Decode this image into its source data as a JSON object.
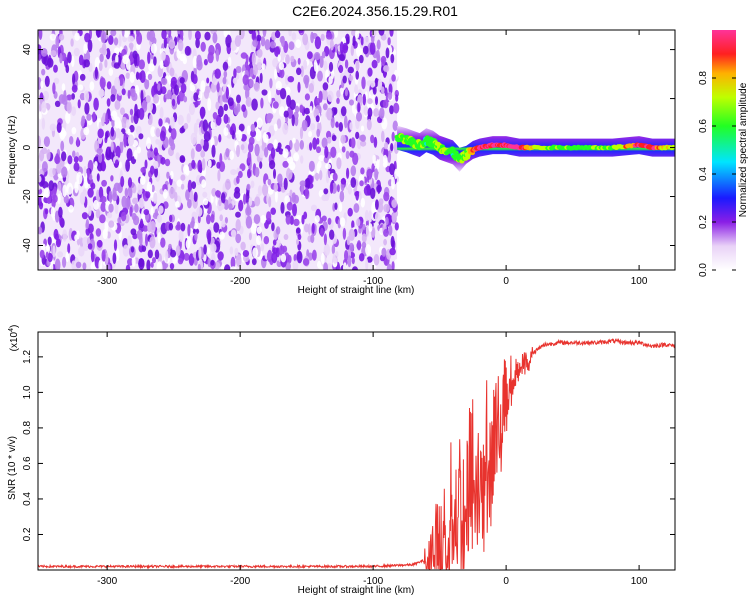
{
  "title": "C2E6.2024.356.15.29.R01",
  "chart_data": [
    {
      "type": "heatmap",
      "title": "",
      "xlabel": "Height of straight line (km)",
      "ylabel": "Frequency (Hz)",
      "xlim": [
        -352,
        127
      ],
      "ylim": [
        -50,
        48
      ],
      "xticks": [
        -300,
        -200,
        -100,
        0,
        100
      ],
      "xtick_labels": [
        "-300",
        "-200",
        "-100",
        "0",
        "100"
      ],
      "yticks": [
        -40,
        -20,
        0,
        20,
        40
      ],
      "ytick_labels": [
        "-40",
        "-20",
        "0",
        "20",
        "40"
      ],
      "noise_region_x": [
        -352,
        -82
      ],
      "signal_track": {
        "x": [
          -82,
          -75,
          -70,
          -65,
          -60,
          -55,
          -50,
          -45,
          -40,
          -35,
          -30,
          -25,
          -20,
          -10,
          0,
          10,
          20,
          40,
          60,
          80,
          100,
          110,
          127
        ],
        "freq": [
          4,
          3,
          2,
          1,
          3,
          2,
          0,
          -1,
          -2,
          -5,
          -3,
          -1,
          0,
          1,
          1,
          0,
          0,
          0,
          0,
          0,
          1,
          0,
          0
        ],
        "amplitude": [
          0.5,
          0.6,
          0.55,
          0.6,
          0.5,
          0.55,
          0.6,
          0.6,
          0.5,
          0.55,
          0.6,
          0.8,
          0.9,
          0.9,
          0.9,
          0.95,
          0.7,
          0.55,
          0.55,
          0.6,
          0.95,
          0.9,
          0.6
        ]
      },
      "colorbar": {
        "label": "Normalized spectral amplitude",
        "range": [
          0.0,
          1.0
        ],
        "ticks": [
          0.0,
          0.2,
          0.4,
          0.6,
          0.8
        ],
        "tick_labels": [
          "0.0",
          "0.2",
          "0.4",
          "0.6",
          "0.8"
        ]
      }
    },
    {
      "type": "line",
      "title": "",
      "xlabel": "Height of straight line (km)",
      "ylabel": "SNR (10 * v/v)",
      "yscale_label": "(x10",
      "yscale_exp": "4",
      "yscale_close": ")",
      "xlim": [
        -352,
        127
      ],
      "ylim": [
        0,
        1.34
      ],
      "xticks": [
        -300,
        -200,
        -100,
        0,
        100
      ],
      "xtick_labels": [
        "-300",
        "-200",
        "-100",
        "0",
        "100"
      ],
      "yticks": [
        0.2,
        0.4,
        0.6,
        0.8,
        1.0,
        1.2
      ],
      "ytick_labels": [
        "0.2",
        "0.4",
        "0.6",
        "0.8",
        "1.0",
        "1.2"
      ],
      "color": "#e8332e",
      "series": [
        {
          "name": "SNR",
          "x": [
            -352,
            -300,
            -200,
            -100,
            -70,
            -60,
            -55,
            -50,
            -45,
            -40,
            -35,
            -30,
            -25,
            -20,
            -15,
            -10,
            -5,
            0,
            5,
            10,
            15,
            20,
            25,
            30,
            40,
            50,
            60,
            70,
            80,
            90,
            100,
            110,
            120,
            127
          ],
          "y": [
            0.02,
            0.02,
            0.02,
            0.02,
            0.03,
            0.06,
            0.12,
            0.2,
            0.3,
            0.35,
            0.4,
            0.45,
            0.55,
            0.6,
            0.7,
            0.75,
            0.9,
            1.0,
            1.1,
            1.15,
            1.18,
            1.22,
            1.25,
            1.27,
            1.28,
            1.28,
            1.28,
            1.28,
            1.29,
            1.28,
            1.28,
            1.26,
            1.27,
            1.26
          ]
        }
      ]
    }
  ]
}
